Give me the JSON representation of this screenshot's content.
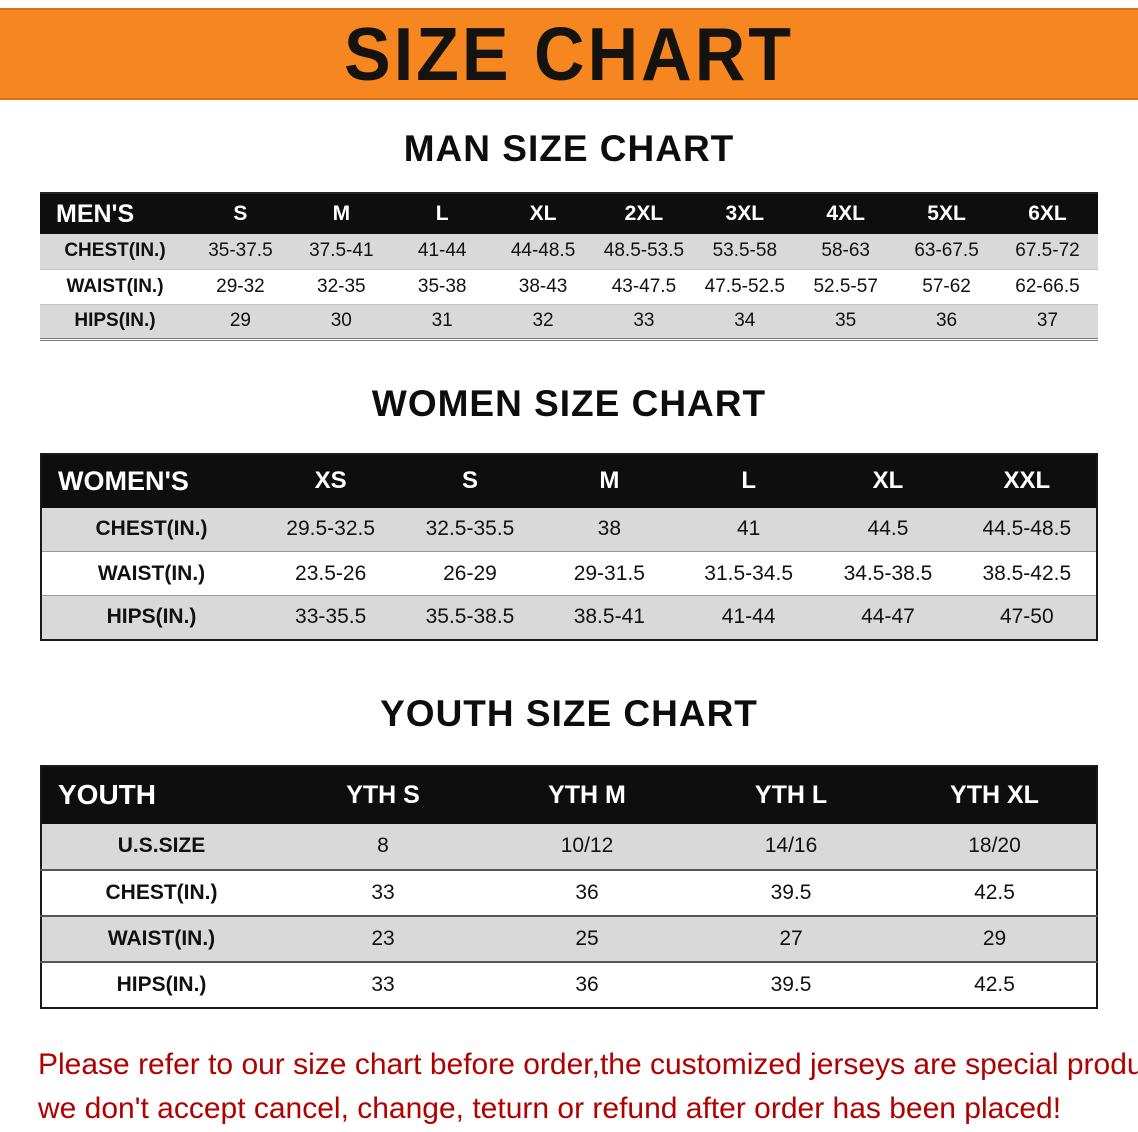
{
  "banner": {
    "title": "SIZE CHART",
    "bg_color": "#f6861f",
    "text_color": "#151310"
  },
  "sections": [
    {
      "heading": "MAN SIZE CHART",
      "table": {
        "header": [
          "MEN'S",
          "S",
          "M",
          "L",
          "XL",
          "2XL",
          "3XL",
          "4XL",
          "5XL",
          "6XL"
        ],
        "rows": [
          [
            "CHEST(IN.)",
            "35-37.5",
            "37.5-41",
            "41-44",
            "44-48.5",
            "48.5-53.5",
            "53.5-58",
            "58-63",
            "63-67.5",
            "67.5-72"
          ],
          [
            "WAIST(IN.)",
            "29-32",
            "32-35",
            "35-38",
            "38-43",
            "43-47.5",
            "47.5-52.5",
            "52.5-57",
            "57-62",
            "62-66.5"
          ],
          [
            "HIPS(IN.)",
            "29",
            "30",
            "31",
            "32",
            "33",
            "34",
            "35",
            "36",
            "37"
          ]
        ]
      }
    },
    {
      "heading": "WOMEN SIZE CHART",
      "table": {
        "header": [
          "WOMEN'S",
          "XS",
          "S",
          "M",
          "L",
          "XL",
          "XXL"
        ],
        "rows": [
          [
            "CHEST(IN.)",
            "29.5-32.5",
            "32.5-35.5",
            "38",
            "41",
            "44.5",
            "44.5-48.5"
          ],
          [
            "WAIST(IN.)",
            "23.5-26",
            "26-29",
            "29-31.5",
            "31.5-34.5",
            "34.5-38.5",
            "38.5-42.5"
          ],
          [
            "HIPS(IN.)",
            "33-35.5",
            "35.5-38.5",
            "38.5-41",
            "41-44",
            "44-47",
            "47-50"
          ]
        ]
      }
    },
    {
      "heading": "YOUTH SIZE CHART",
      "table": {
        "header": [
          "YOUTH",
          "YTH S",
          "YTH M",
          "YTH L",
          "YTH XL"
        ],
        "rows": [
          [
            "U.S.SIZE",
            "8",
            "10/12",
            "14/16",
            "18/20"
          ],
          [
            "CHEST(IN.)",
            "33",
            "36",
            "39.5",
            "42.5"
          ],
          [
            "WAIST(IN.)",
            "23",
            "25",
            "27",
            "29"
          ],
          [
            "HIPS(IN.)",
            "33",
            "36",
            "39.5",
            "42.5"
          ]
        ]
      }
    }
  ],
  "footer": {
    "line1": "Please refer to our size chart before order,the customized jerseys are special products,",
    "line2": "we don't accept cancel, change, teturn or refund after order has been placed!",
    "text_color": "#b00000"
  }
}
